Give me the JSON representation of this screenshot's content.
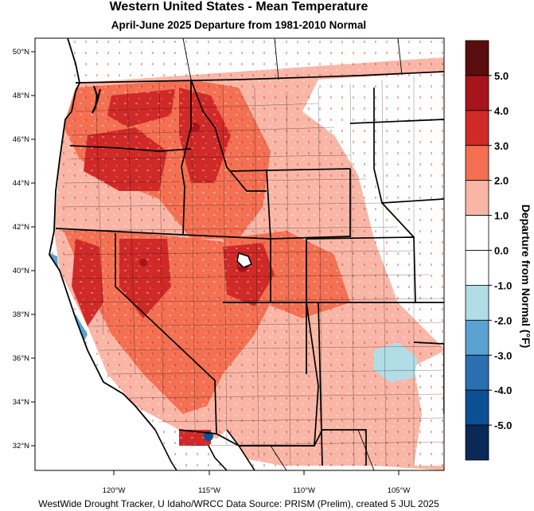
{
  "title": "Western United States - Mean Temperature",
  "subtitle": "April-June 2025  Departure from 1981-2010 Normal",
  "footer": "WestWide Drought Tracker, U Idaho/WRCC Data Source: PRISM (Prelim), created  5 JUL 2025",
  "lat_labels": [
    "50°N",
    "48°N",
    "46°N",
    "44°N",
    "42°N",
    "40°N",
    "38°N",
    "36°N",
    "34°N",
    "32°N"
  ],
  "lon_labels": [
    "120°W",
    "115°W",
    "110°W",
    "105°W"
  ],
  "legend": {
    "label": "Departure from Normal (°F)",
    "ticks": [
      "5.0",
      "4.0",
      "3.0",
      "2.0",
      "1.0",
      "0.0",
      "-1.0",
      "-2.0",
      "-3.0",
      "-4.0",
      "-5.0"
    ],
    "colors": [
      "#5a0d0d",
      "#a8141c",
      "#d02a28",
      "#f47052",
      "#f9b6a6",
      "#ffffff",
      "#ffffff",
      "#b3dde6",
      "#5aa2d1",
      "#2a6fb0",
      "#0d4f94",
      "#0a2a55"
    ]
  }
}
